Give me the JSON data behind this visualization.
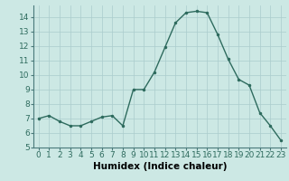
{
  "x": [
    0,
    1,
    2,
    3,
    4,
    5,
    6,
    7,
    8,
    9,
    10,
    11,
    12,
    13,
    14,
    15,
    16,
    17,
    18,
    19,
    20,
    21,
    22,
    23
  ],
  "y": [
    7.0,
    7.2,
    6.8,
    6.5,
    6.5,
    6.8,
    7.1,
    7.2,
    6.5,
    9.0,
    9.0,
    10.2,
    11.9,
    13.6,
    14.3,
    14.4,
    14.3,
    12.8,
    11.1,
    9.7,
    9.3,
    7.4,
    6.5,
    5.5
  ],
  "xlabel": "Humidex (Indice chaleur)",
  "xlim": [
    -0.5,
    23.5
  ],
  "ylim": [
    5,
    14.8
  ],
  "yticks": [
    5,
    6,
    7,
    8,
    9,
    10,
    11,
    12,
    13,
    14
  ],
  "xticks": [
    0,
    1,
    2,
    3,
    4,
    5,
    6,
    7,
    8,
    9,
    10,
    11,
    12,
    13,
    14,
    15,
    16,
    17,
    18,
    19,
    20,
    21,
    22,
    23
  ],
  "line_color": "#2e6b5e",
  "background_color": "#cce8e4",
  "grid_color": "#aacccc",
  "tick_fontsize": 6.5,
  "label_fontsize": 7.5
}
